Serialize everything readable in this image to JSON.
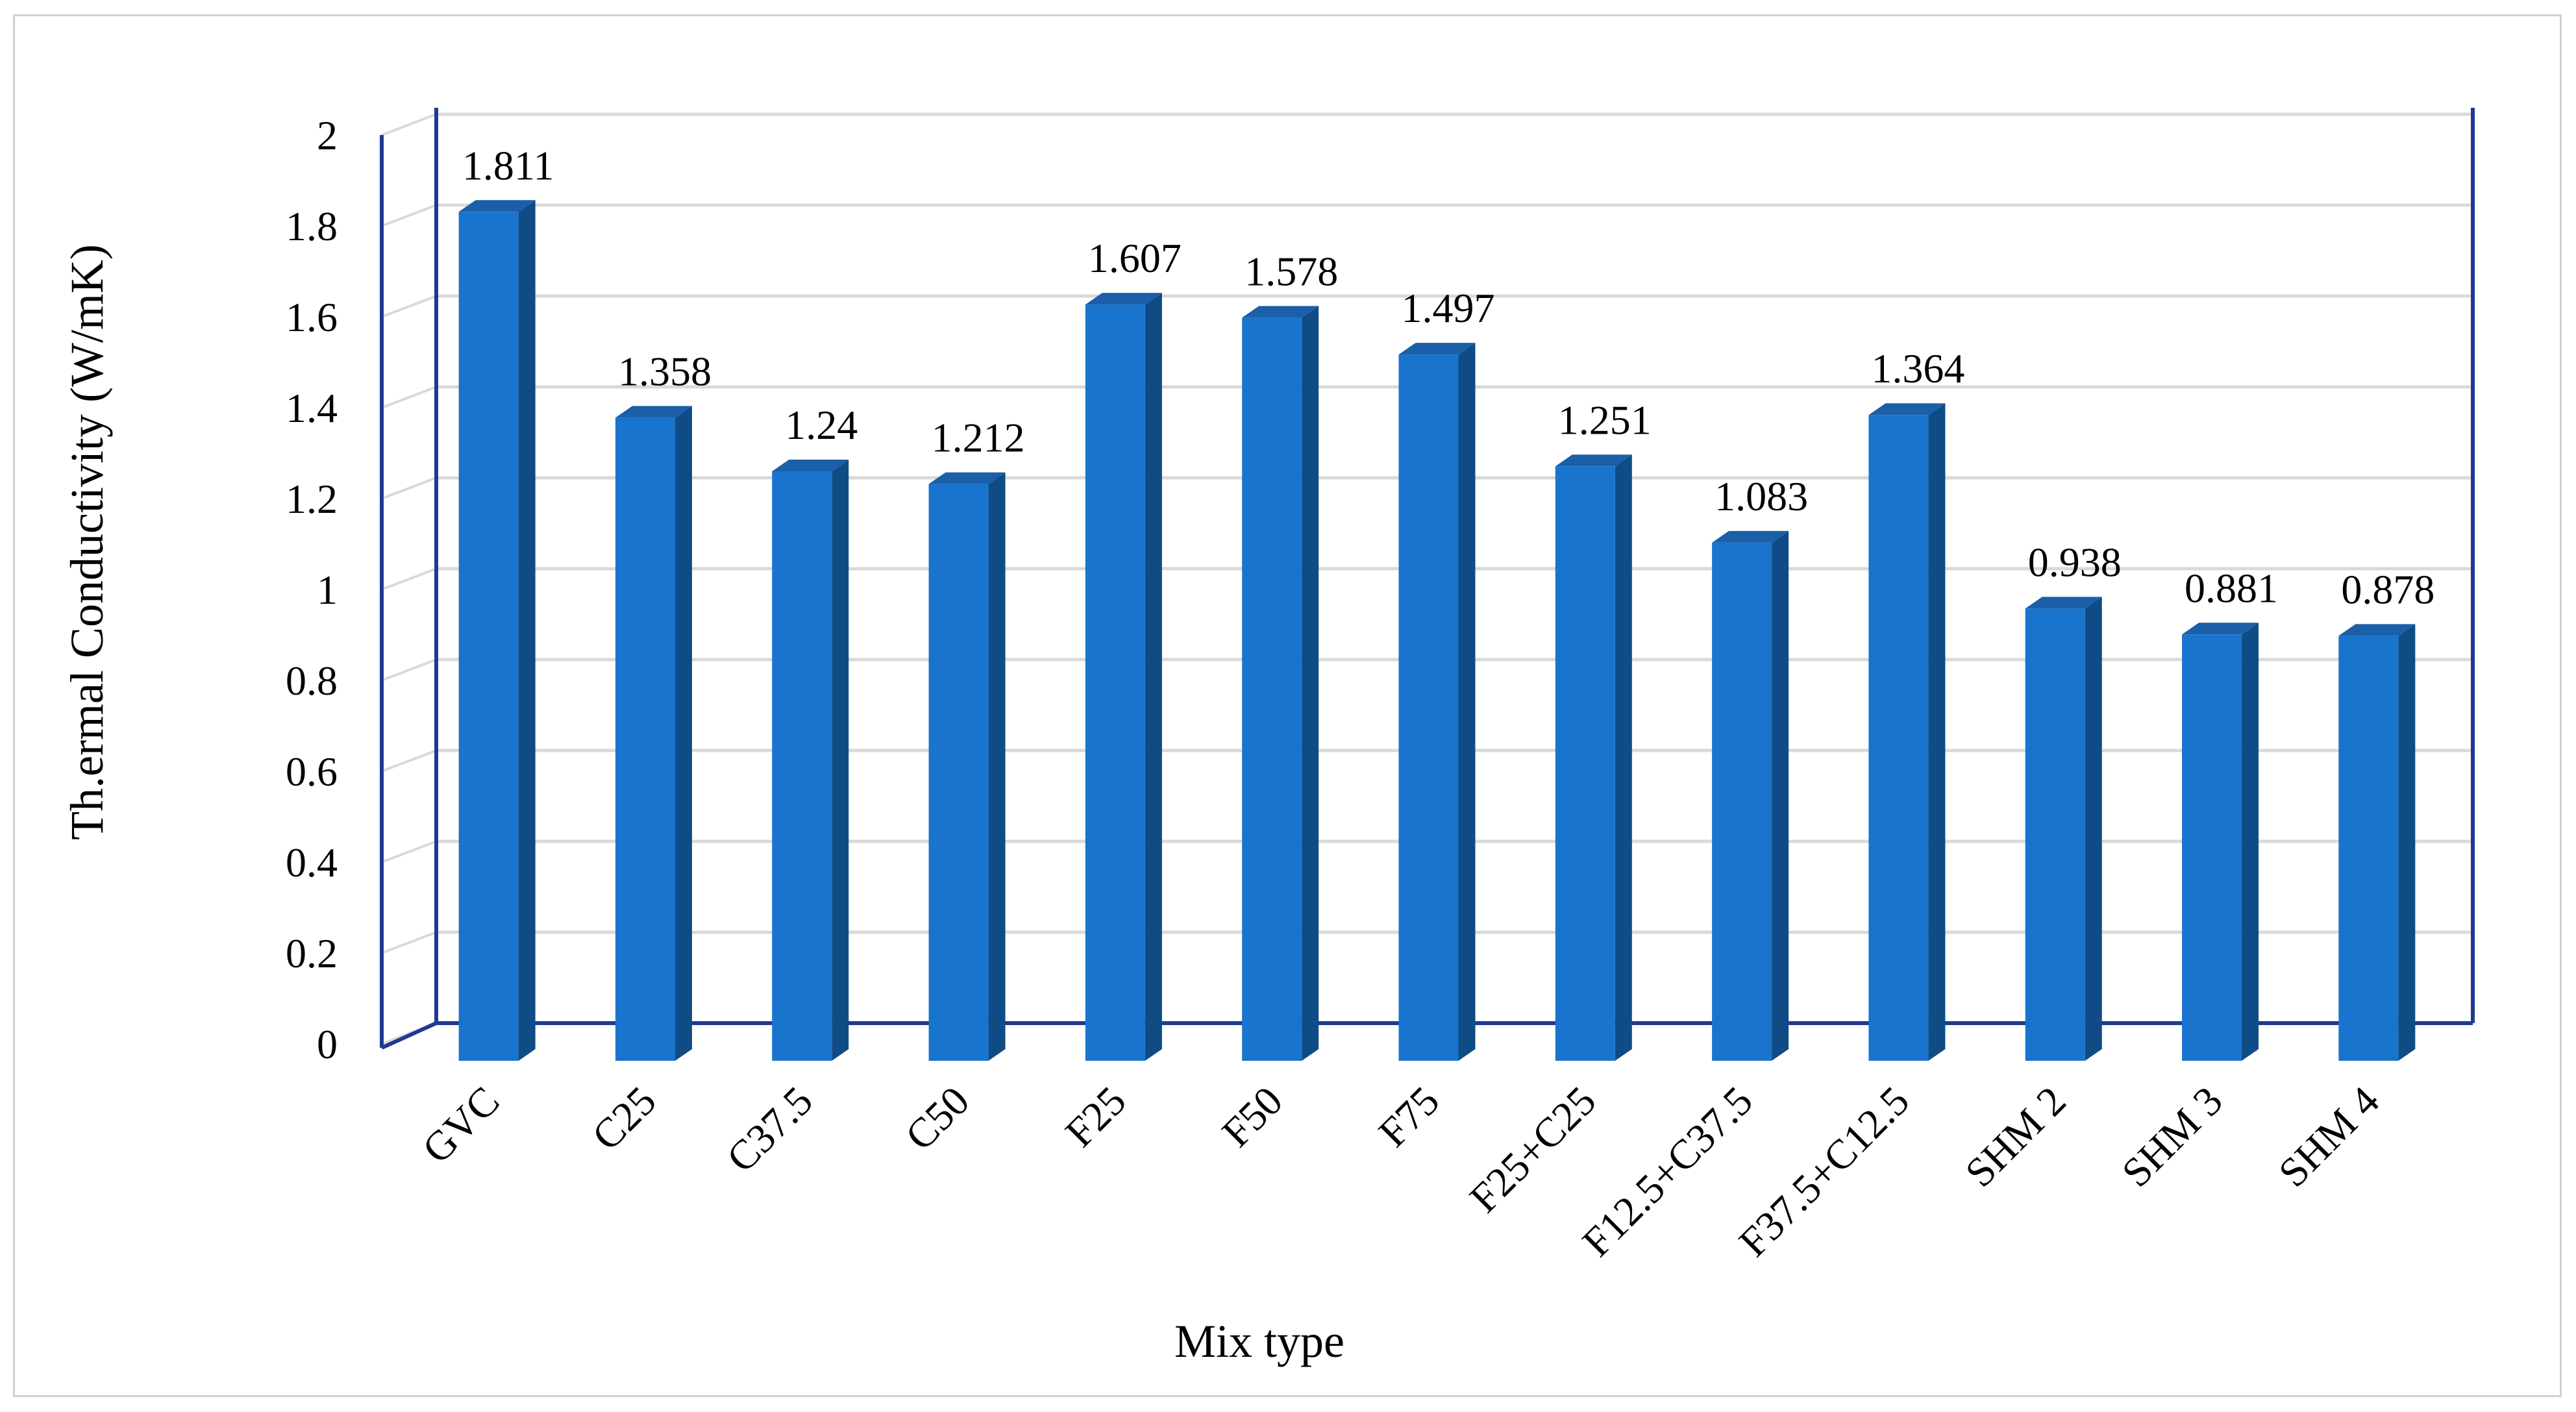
{
  "chart_data": {
    "type": "bar",
    "style": "3d-column",
    "title": "",
    "xlabel": "Mix type",
    "ylabel": "Th.ermal Conductivity (W/mK)",
    "ylim": [
      0,
      2
    ],
    "yticks": [
      "0",
      "0.2",
      "0.4",
      "0.6",
      "0.8",
      "1",
      "1.2",
      "1.4",
      "1.6",
      "1.8",
      "2"
    ],
    "grid": true,
    "legend": "none",
    "categories": [
      "GVC",
      "C25",
      "C37.5",
      "C50",
      "F25",
      "F50",
      "F75",
      "F25+C25",
      "F12.5+C37.5",
      "F37.5+C12.5",
      "SHM 2",
      "SHM 3",
      "SHM 4"
    ],
    "values": [
      1.811,
      1.358,
      1.24,
      1.212,
      1.607,
      1.578,
      1.497,
      1.251,
      1.083,
      1.364,
      0.938,
      0.881,
      0.878
    ],
    "data_labels": [
      "1.811",
      "1.358",
      "1.24",
      "1.212",
      "1.607",
      "1.578",
      "1.497",
      "1.251",
      "1.083",
      "1.364",
      "0.938",
      "0.881",
      "0.878"
    ]
  },
  "colors": {
    "bar_front": "#1874CD",
    "bar_side": "#0F4C86",
    "bar_top": "#1B5FA8",
    "gridline": "#d9d9d9",
    "axis": "#1F3A93",
    "frame": "#d0d0d0"
  }
}
